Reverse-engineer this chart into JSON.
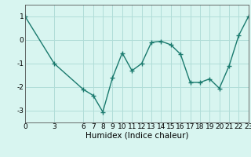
{
  "x": [
    0,
    3,
    6,
    7,
    8,
    9,
    10,
    11,
    12,
    13,
    14,
    15,
    16,
    17,
    18,
    19,
    20,
    21,
    22,
    23
  ],
  "y": [
    1.0,
    -1.0,
    -2.1,
    -2.35,
    -3.05,
    -1.6,
    -0.55,
    -1.3,
    -1.0,
    -0.1,
    -0.05,
    -0.2,
    -0.6,
    -1.8,
    -1.8,
    -1.65,
    -2.05,
    -1.1,
    0.2,
    1.0
  ],
  "line_color": "#1a7a6e",
  "marker": "+",
  "marker_size": 4,
  "bg_color": "#d8f5f0",
  "grid_color": "#b0ddd8",
  "xlabel": "Humidex (Indice chaleur)",
  "xlim": [
    0,
    23
  ],
  "ylim": [
    -3.5,
    1.5
  ],
  "xticks": [
    0,
    3,
    6,
    7,
    8,
    9,
    10,
    11,
    12,
    13,
    14,
    15,
    16,
    17,
    18,
    19,
    20,
    21,
    22,
    23
  ],
  "yticks": [
    -3,
    -2,
    -1,
    0,
    1
  ],
  "tick_fontsize": 6.5,
  "xlabel_fontsize": 7.5,
  "linewidth": 1.0
}
